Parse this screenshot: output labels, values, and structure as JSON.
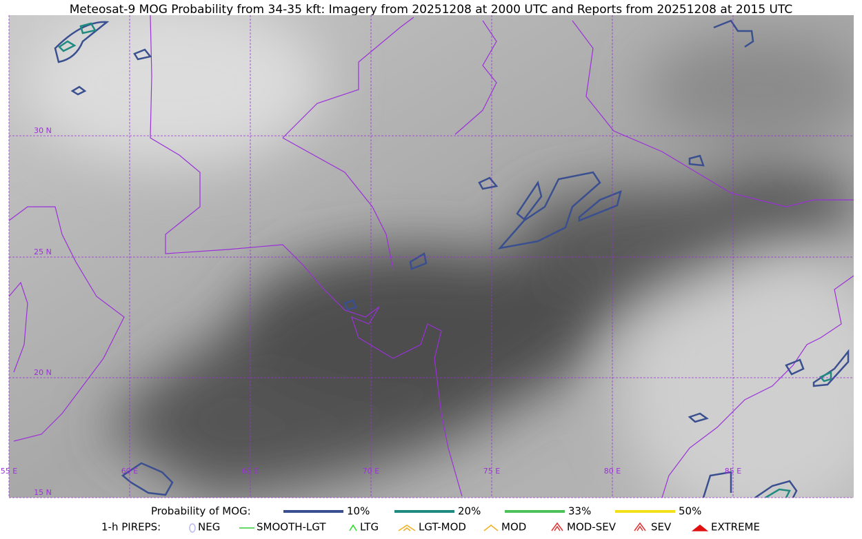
{
  "header": {
    "title": "Meteosat-9 MOG Probability from 34-35 kft: Imagery from 20251208 at 2000 UTC and Reports from 20251208 at 2015 UTC"
  },
  "map": {
    "lat_labels": [
      "30 N",
      "25 N",
      "20 N",
      "15 N"
    ],
    "lon_labels": [
      "55 E",
      "60 E",
      "65 E",
      "70 E",
      "75 E",
      "80 E",
      "85 E"
    ]
  },
  "legend": {
    "mog_title": "Probability of MOG:",
    "mog_items": [
      {
        "label": "10%",
        "color": "#3a4f8f"
      },
      {
        "label": "20%",
        "color": "#1f8a80"
      },
      {
        "label": "33%",
        "color": "#4cc05a"
      },
      {
        "label": "50%",
        "color": "#f2e01a"
      }
    ],
    "pirep_title": "1-h PIREPS:",
    "pirep_items": [
      {
        "label": "NEG",
        "color": "#b8b8f0"
      },
      {
        "label": "SMOOTH-LGT",
        "color": "#33cc33"
      },
      {
        "label": "LTG",
        "color": "#22dd22"
      },
      {
        "label": "LGT-MOD",
        "color": "#f0b020"
      },
      {
        "label": "MOD",
        "color": "#f0b020"
      },
      {
        "label": "MOD-SEV",
        "color": "#e03030"
      },
      {
        "label": "SEV",
        "color": "#e03030"
      },
      {
        "label": "EXTREME",
        "color": "#e01010"
      }
    ]
  }
}
